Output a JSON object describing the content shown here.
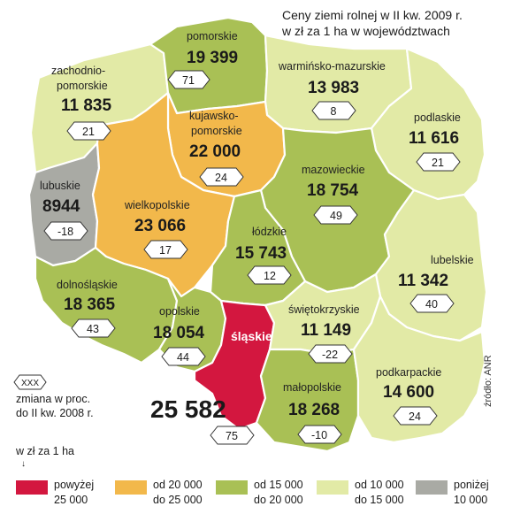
{
  "title": {
    "line1": "Ceny ziemi rolnej w II kw. 2009 r.",
    "line2": "w zł za 1 ha w województwach"
  },
  "colors": {
    "above_25000": "#d3173f",
    "range_20000_25000": "#f2b84b",
    "range_15000_20000": "#a9c055",
    "range_10000_15000": "#e2eaa6",
    "below_10000": "#a9aaa4"
  },
  "regions": [
    {
      "id": "pomorskie",
      "name": "pomorskie",
      "price": "19 399",
      "change": "71",
      "color": "#a9c055"
    },
    {
      "id": "zachodniopomorskie",
      "name_line1": "zachodnio-",
      "name_line2": "pomorskie",
      "price": "11 835",
      "change": "21",
      "color": "#e2eaa6"
    },
    {
      "id": "warminsko-mazurskie",
      "name": "warmińsko-mazurskie",
      "price": "13 983",
      "change": "8",
      "color": "#e2eaa6"
    },
    {
      "id": "podlaskie",
      "name": "podlaskie",
      "price": "11 616",
      "change": "21",
      "color": "#e2eaa6"
    },
    {
      "id": "kujawsko-pomorskie",
      "name_line1": "kujawsko-",
      "name_line2": "pomorskie",
      "price": "22 000",
      "change": "24",
      "color": "#f2b84b"
    },
    {
      "id": "lubuskie",
      "name": "lubuskie",
      "price": "8944",
      "change": "-18",
      "color": "#a9aaa4"
    },
    {
      "id": "wielkopolskie",
      "name": "wielkopolskie",
      "price": "23 066",
      "change": "17",
      "color": "#f2b84b"
    },
    {
      "id": "mazowieckie",
      "name": "mazowieckie",
      "price": "18 754",
      "change": "49",
      "color": "#a9c055"
    },
    {
      "id": "lodzkie",
      "name": "łódzkie",
      "price": "15 743",
      "change": "12",
      "color": "#a9c055"
    },
    {
      "id": "dolnoslaskie",
      "name": "dolnośląskie",
      "price": "18 365",
      "change": "43",
      "color": "#a9c055"
    },
    {
      "id": "lubelskie",
      "name": "lubelskie",
      "price": "11 342",
      "change": "40",
      "color": "#e2eaa6"
    },
    {
      "id": "opolskie",
      "name": "opolskie",
      "price": "18 054",
      "change": "44",
      "color": "#a9c055"
    },
    {
      "id": "slaskie",
      "name": "śląskie",
      "price": "25 582",
      "change": "75",
      "color": "#d3173f"
    },
    {
      "id": "swietokrzyskie",
      "name": "świętokrzyskie",
      "price": "11 149",
      "change": "-22",
      "color": "#e2eaa6"
    },
    {
      "id": "malopolskie",
      "name": "małopolskie",
      "price": "18 268",
      "change": "-10",
      "color": "#a9c055"
    },
    {
      "id": "podkarpackie",
      "name": "podkarpackie",
      "price": "14 600",
      "change": "24",
      "color": "#e2eaa6"
    }
  ],
  "legend": {
    "badge_sample": "XXX",
    "change_line1": "zmiana w proc.",
    "change_line2": "do II kw. 2008 r.",
    "unit": "w zł za 1 ha",
    "arrow": "↓",
    "items": [
      {
        "line1": "powyżej",
        "line2": "25 000",
        "color": "#d3173f"
      },
      {
        "line1": "od 20 000",
        "line2": "do 25 000",
        "color": "#f2b84b"
      },
      {
        "line1": "od 15 000",
        "line2": "do 20 000",
        "color": "#a9c055"
      },
      {
        "line1": "od 10 000",
        "line2": "do 15 000",
        "color": "#e2eaa6"
      },
      {
        "line1": "poniżej",
        "line2": "10 000",
        "color": "#a9aaa4"
      }
    ]
  },
  "source": "źródło: ANR"
}
